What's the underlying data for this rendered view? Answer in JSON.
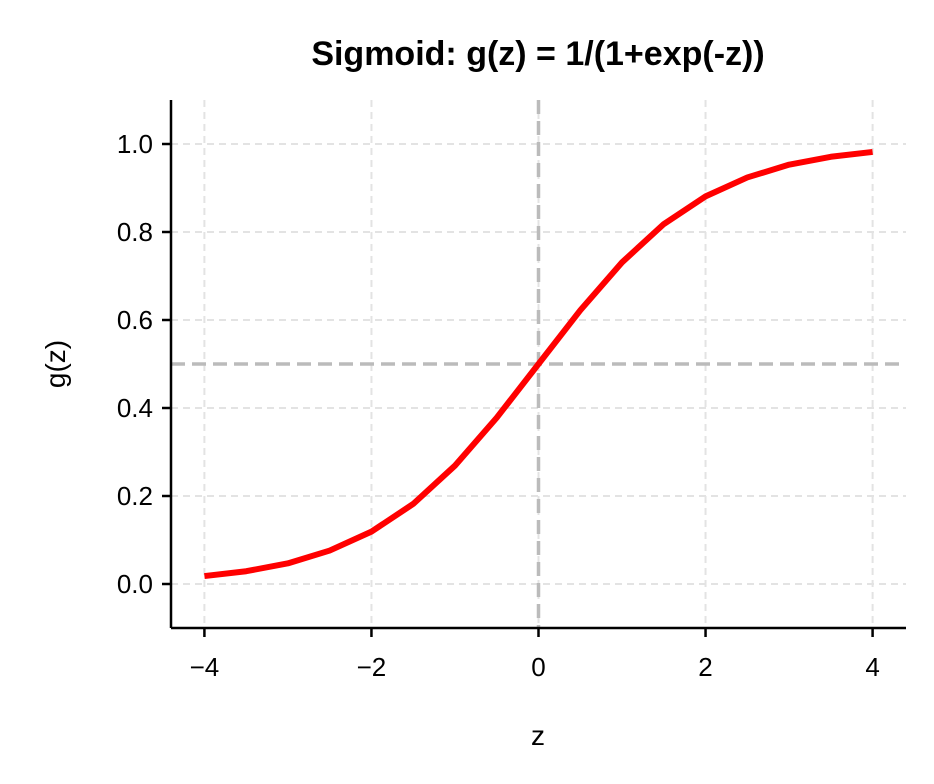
{
  "chart_data": {
    "type": "line",
    "title": "Sigmoid: g(z) = 1/(1+exp(-z))",
    "xlabel": "z",
    "ylabel": "g(z)",
    "xlim": [
      -4.4,
      4.4
    ],
    "ylim": [
      -0.1,
      1.1
    ],
    "x_ticks": [
      -4,
      -2,
      0,
      2,
      4
    ],
    "x_tick_labels": [
      "−4",
      "−2",
      "0",
      "2",
      "4"
    ],
    "y_ticks": [
      0.0,
      0.2,
      0.4,
      0.6,
      0.8,
      1.0
    ],
    "y_tick_labels": [
      "0.0",
      "0.2",
      "0.4",
      "0.6",
      "0.8",
      "1.0"
    ],
    "grid": true,
    "reference_lines": [
      {
        "orientation": "horizontal",
        "y": 0.5
      },
      {
        "orientation": "vertical",
        "x": 0
      }
    ],
    "series": [
      {
        "color": "#ff0000",
        "x": [
          -4,
          -3.5,
          -3,
          -2.5,
          -2,
          -1.5,
          -1,
          -0.5,
          0,
          0.5,
          1,
          1.5,
          2,
          2.5,
          3,
          3.5,
          4
        ],
        "y": [
          0.018,
          0.029,
          0.047,
          0.076,
          0.119,
          0.182,
          0.269,
          0.378,
          0.5,
          0.622,
          0.731,
          0.818,
          0.881,
          0.924,
          0.953,
          0.971,
          0.982
        ]
      }
    ]
  },
  "colors": {
    "curve": "#ff0000",
    "reference": "#bbbbbb",
    "grid": "#e3e3e3",
    "axis": "#000000"
  }
}
